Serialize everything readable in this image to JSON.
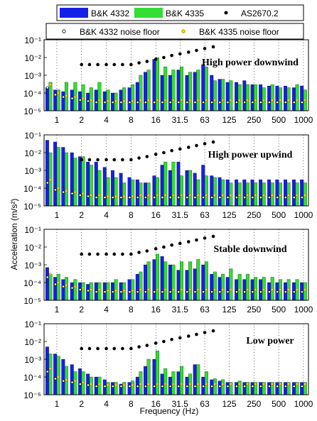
{
  "legend": {
    "row1": [
      {
        "label": "B&K 4332",
        "marker": "bar",
        "color": "#1420e6"
      },
      {
        "label": "B&K 4335",
        "marker": "bar",
        "color": "#33dd33"
      },
      {
        "label": "AS2670.2",
        "marker": "dot",
        "color": "#000000"
      }
    ],
    "row2": [
      {
        "label": "B&K 4332 noise floor",
        "marker": "open-circle",
        "color": "#000000"
      },
      {
        "label": "B&K 4335 noise floor",
        "marker": "open-circle-yellow",
        "color": "#c8a000"
      }
    ]
  },
  "colors": {
    "bk4332": "#1420e6",
    "bk4335": "#33dd33",
    "as2670": "#000000",
    "nf4332": "#000000",
    "nf4335": "#ffe000"
  },
  "shared_x_tick_labels": [
    "1",
    "2",
    "4",
    "8",
    "16",
    "31.5",
    "63",
    "125",
    "250",
    "500",
    "1000"
  ],
  "x_axis_label": "Frequency (Hz)",
  "y_axis_label": "Acceleration (m/s²)",
  "y_tick_labels": [
    "10⁻⁵",
    "10⁻⁴",
    "10⁻³",
    "10⁻²",
    "10⁻¹"
  ],
  "chart_data": [
    {
      "type": "bar",
      "title": "High power downwind",
      "x_scale": "log",
      "y_scale": "log",
      "ylim": [
        1e-05,
        0.1
      ],
      "x": [
        0.8,
        1,
        1.25,
        1.6,
        2,
        2.5,
        3.15,
        4,
        5,
        6.3,
        8,
        10,
        12.5,
        16,
        20,
        25,
        31.5,
        40,
        50,
        63,
        80,
        100,
        125,
        160,
        200,
        250,
        315,
        400,
        500,
        630,
        800,
        1000
      ],
      "series": [
        {
          "name": "B&K 4332",
          "values": [
            0.0002,
            0.00015,
            0.00012,
            0.00015,
            0.00012,
            0.0001,
            0.00015,
            0.00012,
            0.0001,
            0.00015,
            0.0002,
            0.0004,
            0.0015,
            0.008,
            0.001,
            0.001,
            0.002,
            0.001,
            0.0015,
            0.004,
            0.001,
            0.0006,
            0.0004,
            0.0004,
            0.0005,
            0.0003,
            0.0003,
            0.00025,
            0.00025,
            0.00025,
            0.0002,
            0.00025
          ]
        },
        {
          "name": "B&K 4335",
          "values": [
            0.0004,
            0.00015,
            0.0004,
            0.0004,
            0.0003,
            0.0002,
            0.0004,
            0.00015,
            0.0001,
            0.0002,
            0.0003,
            0.001,
            0.002,
            0.01,
            0.003,
            0.002,
            0.003,
            0.0015,
            0.002,
            0.003,
            0.0005,
            0.0006,
            0.0005,
            0.0003,
            0.0003,
            0.0003,
            0.0002,
            0.0003,
            0.0002,
            0.0002,
            0.0003,
            0.00015
          ]
        },
        {
          "name": "AS2670.2",
          "x": [
            2,
            2.5,
            3.15,
            4,
            5,
            6.3,
            8,
            10,
            12.5,
            16,
            20,
            25,
            31.5,
            40,
            50,
            63,
            80
          ],
          "values": [
            0.004,
            0.004,
            0.004,
            0.004,
            0.004,
            0.004,
            0.004,
            0.005,
            0.006,
            0.008,
            0.01,
            0.013,
            0.016,
            0.02,
            0.025,
            0.032,
            0.04
          ]
        },
        {
          "name": "B&K 4332 noise floor",
          "values": [
            0.0002,
            8e-05,
            6e-05,
            5e-05,
            4e-05,
            3.5e-05,
            3e-05,
            3e-05,
            3e-05,
            3e-05,
            3e-05,
            3e-05,
            3e-05,
            3e-05,
            3e-05,
            3e-05,
            3e-05,
            3e-05,
            3e-05,
            3e-05,
            3e-05,
            3e-05,
            3e-05,
            3e-05,
            3e-05,
            3e-05,
            3e-05,
            3e-05,
            3e-05,
            3e-05,
            3e-05,
            3e-05
          ]
        },
        {
          "name": "B&K 4335 noise floor",
          "values": [
            0.0003,
            0.0001,
            7e-05,
            6e-05,
            5e-05,
            4e-05,
            4e-05,
            3.5e-05,
            3.5e-05,
            3.5e-05,
            3.5e-05,
            4e-05,
            4e-05,
            4e-05,
            4e-05,
            4e-05,
            4e-05,
            4e-05,
            4e-05,
            4e-05,
            4e-05,
            4e-05,
            4e-05,
            4e-05,
            4e-05,
            4e-05,
            4e-05,
            4e-05,
            4e-05,
            4e-05,
            4e-05,
            4e-05
          ]
        }
      ]
    },
    {
      "type": "bar",
      "title": "High power upwind",
      "x_scale": "log",
      "y_scale": "log",
      "ylim": [
        1e-05,
        0.1
      ],
      "x": [
        0.8,
        1,
        1.25,
        1.6,
        2,
        2.5,
        3.15,
        4,
        5,
        6.3,
        8,
        10,
        12.5,
        16,
        20,
        25,
        31.5,
        40,
        50,
        63,
        80,
        100,
        125,
        160,
        200,
        250,
        315,
        400,
        500,
        630,
        800,
        1000
      ],
      "series": [
        {
          "name": "B&K 4332",
          "values": [
            0.05,
            0.04,
            0.02,
            0.01,
            0.006,
            0.003,
            0.003,
            0.0015,
            0.001,
            0.0007,
            0.0004,
            0.0003,
            0.0002,
            0.0005,
            0.002,
            0.001,
            0.003,
            0.001,
            0.0007,
            0.002,
            0.0005,
            0.0004,
            0.0003,
            0.0003,
            0.0003,
            0.0003,
            0.0003,
            0.0003,
            0.0003,
            0.0003,
            0.0003,
            0.0003
          ]
        },
        {
          "name": "B&K 4335",
          "values": [
            0.01,
            0.02,
            0.01,
            0.005,
            0.006,
            0.002,
            0.001,
            0.0004,
            0.0004,
            0.0002,
            0.0003,
            0.0002,
            0.0002,
            0.0004,
            0.003,
            0.003,
            0.0005,
            0.001,
            0.0003,
            0.0005,
            0.0004,
            0.0003,
            0.0002,
            0.0002,
            0.0002,
            0.0002,
            0.0002,
            0.0002,
            0.0002,
            0.0002,
            0.0002,
            0.0002
          ]
        },
        {
          "name": "AS2670.2",
          "x": [
            2,
            2.5,
            3.15,
            4,
            5,
            6.3,
            8,
            10,
            12.5,
            16,
            20,
            25,
            31.5,
            40,
            50,
            63,
            80
          ],
          "values": [
            0.004,
            0.004,
            0.004,
            0.004,
            0.004,
            0.004,
            0.004,
            0.005,
            0.006,
            0.008,
            0.01,
            0.013,
            0.016,
            0.02,
            0.025,
            0.032,
            0.04
          ]
        },
        {
          "name": "B&K 4332 noise floor",
          "values": [
            0.0002,
            8e-05,
            6e-05,
            5e-05,
            4e-05,
            3.5e-05,
            3e-05,
            3e-05,
            3e-05,
            3e-05,
            3e-05,
            3e-05,
            3e-05,
            3e-05,
            3e-05,
            3e-05,
            3e-05,
            3e-05,
            3e-05,
            3e-05,
            3e-05,
            3e-05,
            3e-05,
            3e-05,
            3e-05,
            3e-05,
            3e-05,
            3e-05,
            3e-05,
            3e-05,
            3e-05,
            3e-05
          ]
        },
        {
          "name": "B&K 4335 noise floor",
          "values": [
            0.0003,
            0.0001,
            7e-05,
            6e-05,
            5e-05,
            4e-05,
            4e-05,
            3.5e-05,
            3.5e-05,
            3.5e-05,
            3.5e-05,
            4e-05,
            4e-05,
            4e-05,
            4e-05,
            4e-05,
            4e-05,
            4e-05,
            4e-05,
            4e-05,
            4e-05,
            4e-05,
            4e-05,
            4e-05,
            4e-05,
            4e-05,
            4e-05,
            4e-05,
            4e-05,
            4e-05,
            4e-05,
            4e-05
          ]
        }
      ]
    },
    {
      "type": "bar",
      "title": "Stable downwind",
      "x_scale": "log",
      "y_scale": "log",
      "ylim": [
        1e-05,
        0.1
      ],
      "x": [
        0.8,
        1,
        1.25,
        1.6,
        2,
        2.5,
        3.15,
        4,
        5,
        6.3,
        8,
        10,
        12.5,
        16,
        20,
        25,
        31.5,
        40,
        50,
        63,
        80,
        100,
        125,
        160,
        200,
        250,
        315,
        400,
        500,
        630,
        800,
        1000
      ],
      "series": [
        {
          "name": "B&K 4332",
          "values": [
            0.0007,
            0.0002,
            0.00015,
            0.0001,
            0.0001,
            8e-05,
            0.0001,
            0.0001,
            0.0001,
            0.0001,
            0.00015,
            0.0003,
            0.001,
            0.002,
            0.003,
            0.001,
            0.0005,
            0.0005,
            0.0006,
            0.001,
            0.0003,
            0.0002,
            0.0002,
            0.00015,
            0.00015,
            0.00015,
            0.00015,
            0.0001,
            0.0001,
            0.0001,
            0.0001,
            0.0001
          ]
        },
        {
          "name": "B&K 4335",
          "values": [
            0.0003,
            0.0003,
            0.0002,
            0.00015,
            0.0001,
            0.0001,
            0.0001,
            0.0001,
            0.00015,
            0.0001,
            0.00015,
            0.0004,
            0.0015,
            0.004,
            0.0015,
            0.001,
            0.0015,
            0.0015,
            0.002,
            0.0015,
            0.0004,
            0.0003,
            0.0006,
            0.0003,
            0.0003,
            0.0002,
            0.0002,
            0.0002,
            0.00015,
            0.00015,
            0.00015,
            0.0001
          ]
        },
        {
          "name": "AS2670.2",
          "x": [
            2,
            2.5,
            3.15,
            4,
            5,
            6.3,
            8,
            10,
            12.5,
            16,
            20,
            25,
            31.5,
            40,
            50,
            63,
            80
          ],
          "values": [
            0.004,
            0.004,
            0.004,
            0.004,
            0.004,
            0.004,
            0.004,
            0.005,
            0.006,
            0.008,
            0.01,
            0.013,
            0.016,
            0.02,
            0.025,
            0.032,
            0.04
          ]
        },
        {
          "name": "B&K 4332 noise floor",
          "values": [
            0.0002,
            8e-05,
            6e-05,
            5e-05,
            4e-05,
            3.5e-05,
            3e-05,
            3e-05,
            3e-05,
            3e-05,
            3e-05,
            3e-05,
            3e-05,
            3e-05,
            3e-05,
            3e-05,
            3e-05,
            3e-05,
            3e-05,
            3e-05,
            3e-05,
            3e-05,
            3e-05,
            3e-05,
            3e-05,
            3e-05,
            3e-05,
            3e-05,
            3e-05,
            3e-05,
            3e-05,
            3e-05
          ]
        },
        {
          "name": "B&K 4335 noise floor",
          "values": [
            0.0003,
            0.0001,
            7e-05,
            6e-05,
            5e-05,
            4e-05,
            4e-05,
            3.5e-05,
            3.5e-05,
            3.5e-05,
            3.5e-05,
            4e-05,
            4e-05,
            4e-05,
            4e-05,
            4e-05,
            4e-05,
            4e-05,
            4e-05,
            4e-05,
            4e-05,
            4e-05,
            4e-05,
            4e-05,
            4e-05,
            4e-05,
            4e-05,
            4e-05,
            4e-05,
            4e-05,
            4e-05,
            4e-05
          ]
        }
      ]
    },
    {
      "type": "bar",
      "title": "Low power",
      "x_scale": "log",
      "y_scale": "log",
      "ylim": [
        1e-05,
        0.1
      ],
      "x": [
        0.8,
        1,
        1.25,
        1.6,
        2,
        2.5,
        3.15,
        4,
        5,
        6.3,
        8,
        10,
        12.5,
        16,
        20,
        25,
        31.5,
        40,
        50,
        63,
        80,
        100,
        125,
        160,
        200,
        250,
        315,
        400,
        500,
        630,
        800,
        1000
      ],
      "series": [
        {
          "name": "B&K 4332",
          "values": [
            0.005,
            0.002,
            0.001,
            0.0005,
            0.0003,
            0.00015,
            0.0001,
            7e-05,
            5e-05,
            4e-05,
            5e-05,
            0.0001,
            0.0004,
            0.001,
            0.00015,
            0.0001,
            0.0002,
            0.0001,
            0.0005,
            0.0001,
            7e-05,
            6e-05,
            5e-05,
            5e-05,
            5e-05,
            5e-05,
            5e-05,
            5e-05,
            5e-05,
            5e-05,
            5e-05,
            5e-05
          ]
        },
        {
          "name": "B&K 4335",
          "values": [
            0.002,
            0.0015,
            0.0004,
            0.0002,
            0.0002,
            0.0001,
            0.0001,
            5e-05,
            5e-05,
            5e-05,
            6e-05,
            0.0002,
            0.001,
            0.003,
            0.0003,
            0.0002,
            0.0004,
            0.00015,
            0.0005,
            0.0002,
            8e-05,
            7e-05,
            5e-05,
            6e-05,
            5e-05,
            5e-05,
            5e-05,
            5e-05,
            5e-05,
            5e-05,
            5e-05,
            5e-05
          ]
        },
        {
          "name": "AS2670.2",
          "x": [
            2,
            2.5,
            3.15,
            4,
            5,
            6.3,
            8,
            10,
            12.5,
            16,
            20,
            25,
            31.5,
            40,
            50,
            63,
            80
          ],
          "values": [
            0.004,
            0.004,
            0.004,
            0.004,
            0.004,
            0.004,
            0.004,
            0.005,
            0.006,
            0.008,
            0.01,
            0.013,
            0.016,
            0.02,
            0.025,
            0.032,
            0.04
          ]
        },
        {
          "name": "B&K 4332 noise floor",
          "values": [
            0.0002,
            8e-05,
            6e-05,
            5e-05,
            4e-05,
            3.5e-05,
            3e-05,
            3e-05,
            3e-05,
            3e-05,
            3e-05,
            3e-05,
            3e-05,
            3e-05,
            3e-05,
            3e-05,
            3e-05,
            3e-05,
            3e-05,
            3e-05,
            3e-05,
            3e-05,
            3e-05,
            3e-05,
            3e-05,
            3e-05,
            3e-05,
            3e-05,
            3e-05,
            3e-05,
            3e-05,
            3e-05
          ]
        },
        {
          "name": "B&K 4335 noise floor",
          "values": [
            0.0003,
            0.0001,
            7e-05,
            6e-05,
            5e-05,
            4e-05,
            4e-05,
            3.5e-05,
            3.5e-05,
            3.5e-05,
            3.5e-05,
            4e-05,
            4e-05,
            4e-05,
            4e-05,
            4e-05,
            4e-05,
            4e-05,
            4e-05,
            4e-05,
            4e-05,
            4e-05,
            4e-05,
            4e-05,
            4e-05,
            4e-05,
            4e-05,
            4e-05,
            4e-05,
            4e-05,
            4e-05,
            4e-05
          ]
        }
      ]
    }
  ]
}
